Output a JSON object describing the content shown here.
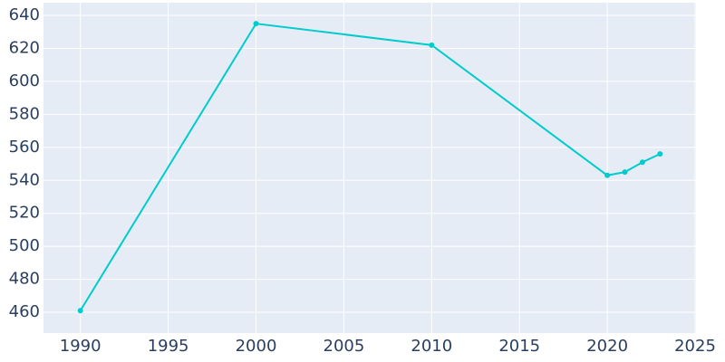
{
  "chart_data": {
    "type": "line",
    "x": [
      1990,
      2000,
      2010,
      2020,
      2021,
      2022,
      2023
    ],
    "series": [
      {
        "color": "#00cccc",
        "values": [
          461,
          635,
          622,
          543,
          545,
          551,
          556
        ]
      }
    ],
    "xlim": [
      1987.9,
      2025.05
    ],
    "xticks": [
      1990,
      1995,
      2000,
      2005,
      2010,
      2015,
      2020,
      2025
    ],
    "ylim": [
      447.4,
      647.7
    ],
    "yticks": [
      460,
      480,
      500,
      520,
      540,
      560,
      580,
      600,
      620,
      640
    ],
    "grid": true
  }
}
